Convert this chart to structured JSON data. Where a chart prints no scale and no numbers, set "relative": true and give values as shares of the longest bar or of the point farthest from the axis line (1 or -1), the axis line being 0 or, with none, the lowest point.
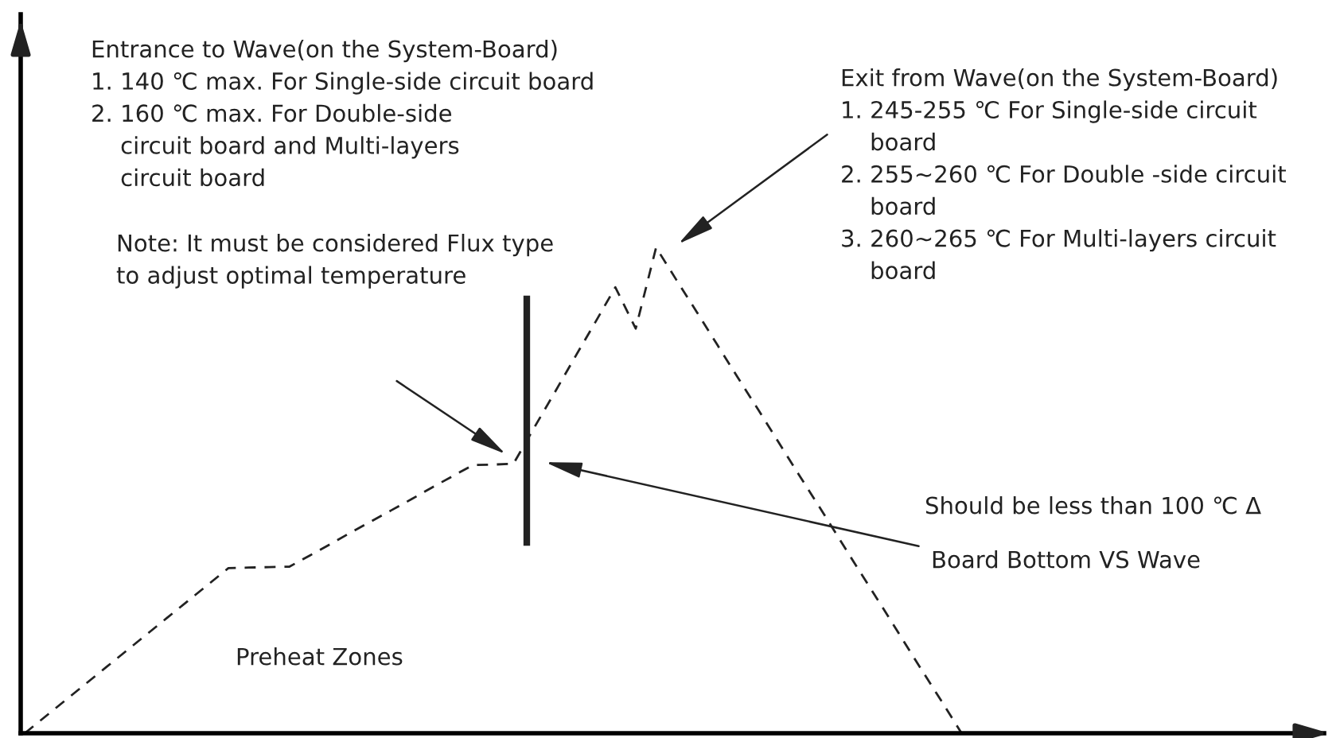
{
  "chart_data": {
    "type": "line",
    "relative": true,
    "line_style": "dashed",
    "color": "#222222",
    "categories": [
      null,
      null,
      null,
      null,
      null,
      null,
      null,
      null,
      null,
      null,
      null,
      null,
      null,
      null,
      null,
      null,
      null,
      null,
      null,
      null,
      null,
      null,
      null,
      null,
      null,
      null,
      null,
      null,
      null,
      null,
      null,
      null,
      null,
      null,
      null,
      null,
      null,
      null,
      null,
      null,
      null,
      null,
      null,
      null,
      null,
      null,
      null,
      null,
      null,
      null,
      null,
      null,
      null,
      null,
      null,
      null,
      null,
      null,
      null,
      null,
      null,
      null,
      null,
      null
    ],
    "values": [
      0,
      0.034,
      0.068,
      0.102,
      0.136,
      0.17,
      0.204,
      0.238,
      0.272,
      0.306,
      0.34,
      0.341,
      0.342,
      0.343,
      0.366,
      0.389,
      0.413,
      0.436,
      0.459,
      0.482,
      0.506,
      0.529,
      0.552,
      0.553,
      0.555,
      0.628,
      0.7,
      0.773,
      0.845,
      0.918,
      0.833,
      1.0,
      0.933,
      0.867,
      0.8,
      0.733,
      0.667,
      0.6,
      0.533,
      0.467,
      0.4,
      0.333,
      0.267,
      0.2,
      0.133,
      0.067,
      0,
      null,
      null,
      null,
      null,
      null,
      null,
      null,
      null,
      null,
      null,
      null,
      null,
      null,
      null,
      null,
      null,
      null
    ],
    "annotations": [
      "Entrance to Wave(on the System-Board)\n1. 140 ℃ max. For Single-side circuit board\n2. 160 ℃ max. For Double-side\n    circuit board and Multi-layers\n    circuit board",
      "Note: It must be considered Flux type\nto adjust optimal temperature",
      "Exit from Wave(on the System-Board)\n1. 245-255 ℃ For Single-side circuit\n    board\n2. 255~260 ℃ For Double -side circuit\n    board\n3. 260~265 ℃ For Multi-layers circuit\n    board",
      "Should be less than 100 ℃ Δ",
      "Board Bottom VS Wave",
      "Preheat Zones"
    ]
  }
}
